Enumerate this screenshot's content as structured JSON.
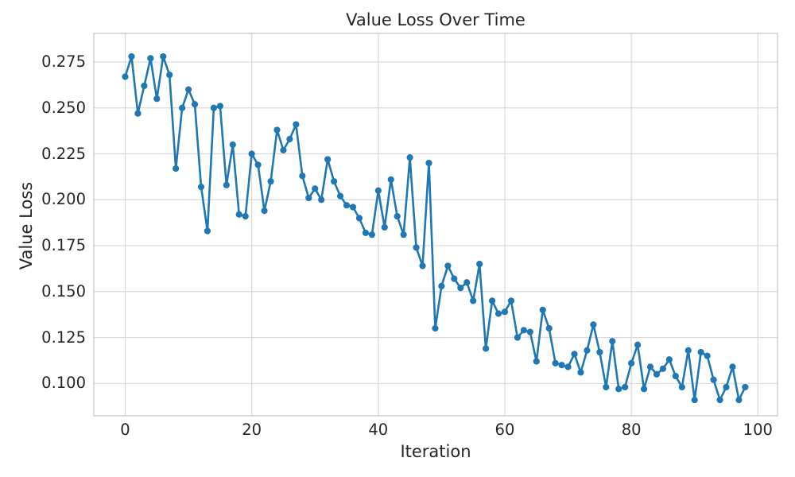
{
  "figure": {
    "title": "Value Loss Over Time",
    "xlabel": "Iteration",
    "ylabel": "Value Loss"
  },
  "colors": {
    "series": "#1f77b4",
    "grid": "#d9d9d9",
    "spine": "#cccccc",
    "text": "#262626",
    "background": "#ffffff"
  },
  "chart_data": {
    "type": "line",
    "title": "Value Loss Over Time",
    "xlabel": "Iteration",
    "ylabel": "Value Loss",
    "grid": true,
    "legend": false,
    "marker": "circle",
    "line_color": "#1f77b4",
    "xlim": [
      -5,
      103
    ],
    "ylim": [
      0.082,
      0.291
    ],
    "x_ticks": [
      0,
      20,
      40,
      60,
      80,
      100
    ],
    "y_ticks": [
      0.275,
      0.25,
      0.225,
      0.2,
      0.175,
      0.15,
      0.125,
      0.1
    ],
    "y_tick_labels": [
      "0.275",
      "0.250",
      "0.225",
      "0.200",
      "0.175",
      "0.150",
      "0.125",
      "0.100"
    ],
    "x": [
      0,
      1,
      2,
      3,
      4,
      5,
      6,
      7,
      8,
      9,
      10,
      11,
      12,
      13,
      14,
      15,
      16,
      17,
      18,
      19,
      20,
      21,
      22,
      23,
      24,
      25,
      26,
      27,
      28,
      29,
      30,
      31,
      32,
      33,
      34,
      35,
      36,
      37,
      38,
      39,
      40,
      41,
      42,
      43,
      44,
      45,
      46,
      47,
      48,
      49,
      50,
      51,
      52,
      53,
      54,
      55,
      56,
      57,
      58,
      59,
      60,
      61,
      62,
      63,
      64,
      65,
      66,
      67,
      68,
      69,
      70,
      71,
      72,
      73,
      74,
      75,
      76,
      77,
      78,
      79,
      80,
      81,
      82,
      83,
      84,
      85,
      86,
      87,
      88,
      89,
      90,
      91,
      92,
      93,
      94,
      95,
      96,
      97,
      98
    ],
    "values": [
      0.267,
      0.278,
      0.247,
      0.262,
      0.277,
      0.255,
      0.278,
      0.268,
      0.217,
      0.25,
      0.26,
      0.252,
      0.207,
      0.183,
      0.25,
      0.251,
      0.208,
      0.23,
      0.192,
      0.191,
      0.225,
      0.219,
      0.194,
      0.21,
      0.238,
      0.227,
      0.233,
      0.241,
      0.213,
      0.201,
      0.206,
      0.2,
      0.222,
      0.21,
      0.202,
      0.197,
      0.196,
      0.19,
      0.182,
      0.181,
      0.205,
      0.185,
      0.211,
      0.191,
      0.181,
      0.223,
      0.174,
      0.164,
      0.22,
      0.13,
      0.153,
      0.164,
      0.157,
      0.152,
      0.155,
      0.145,
      0.165,
      0.119,
      0.145,
      0.138,
      0.139,
      0.145,
      0.125,
      0.129,
      0.128,
      0.112,
      0.14,
      0.13,
      0.111,
      0.11,
      0.109,
      0.116,
      0.106,
      0.118,
      0.132,
      0.117,
      0.098,
      0.123,
      0.097,
      0.098,
      0.111,
      0.121,
      0.097,
      0.109,
      0.105,
      0.108,
      0.113,
      0.104,
      0.098,
      0.118,
      0.091,
      0.117,
      0.115,
      0.102,
      0.091,
      0.098,
      0.109,
      0.091,
      0.098
    ]
  }
}
